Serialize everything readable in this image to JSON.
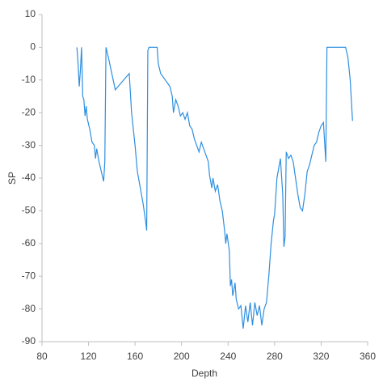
{
  "chart_data": {
    "type": "line",
    "x_label": "Depth",
    "y_label": "SP",
    "x": [
      110,
      111,
      112,
      113,
      114,
      115,
      116,
      117,
      118,
      119,
      121,
      123,
      125,
      126,
      127,
      129,
      131,
      133,
      134,
      135,
      137,
      140,
      143,
      155,
      157,
      160,
      162,
      165,
      167,
      169,
      170,
      171,
      172,
      175,
      179,
      180,
      182,
      184,
      186,
      188,
      190,
      192,
      193,
      195,
      197,
      199,
      201,
      203,
      205,
      207,
      209,
      211,
      213,
      215,
      217,
      219,
      221,
      223,
      224,
      226,
      227,
      229,
      231,
      233,
      235,
      237,
      238,
      239,
      241,
      242,
      243,
      244,
      246,
      247,
      249,
      251,
      253,
      255,
      257,
      259,
      261,
      263,
      265,
      267,
      269,
      271,
      273,
      275,
      277,
      279,
      280,
      282,
      284,
      285,
      287,
      288,
      289,
      290,
      292,
      294,
      296,
      298,
      300,
      302,
      304,
      306,
      308,
      310,
      312,
      314,
      316,
      318,
      320,
      322,
      324,
      325,
      330,
      341,
      343,
      345,
      347
    ],
    "series": [
      {
        "name": "SP",
        "color": "#2e8fe0",
        "values": [
          0,
          -5,
          -12,
          -7,
          0,
          -15,
          -16,
          -21,
          -18,
          -22,
          -25,
          -29,
          -30,
          -34,
          -31,
          -35,
          -38,
          -41,
          -35,
          0,
          -3,
          -8,
          -13,
          -8,
          -20,
          -30,
          -38,
          -44,
          -48,
          -53,
          -56,
          -1,
          0,
          0,
          0,
          -5,
          -8,
          -9,
          -10,
          -11,
          -12,
          -15,
          -20,
          -16,
          -18,
          -21,
          -20,
          -22,
          -20,
          -24,
          -25,
          -28,
          -30,
          -32,
          -29,
          -31,
          -33,
          -35,
          -39,
          -43,
          -40,
          -44,
          -42,
          -47,
          -50,
          -56,
          -60,
          -57,
          -62,
          -73,
          -71,
          -76,
          -72,
          -77,
          -80,
          -79,
          -86,
          -79,
          -84,
          -78,
          -85,
          -78,
          -82,
          -79,
          -85,
          -80,
          -78,
          -70,
          -60,
          -53,
          -51,
          -40,
          -36,
          -34,
          -45,
          -61,
          -58,
          -32,
          -34,
          -33,
          -35,
          -40,
          -45,
          -49,
          -50,
          -45,
          -38,
          -36,
          -33,
          -30,
          -29,
          -26,
          -24,
          -23,
          -35,
          0,
          0,
          0,
          -3,
          -10,
          -22.5
        ]
      }
    ],
    "xlim": [
      80,
      360
    ],
    "xticks": [
      80,
      120,
      160,
      200,
      240,
      280,
      320,
      360
    ],
    "ylim": [
      -90,
      10
    ],
    "yticks": [
      10,
      0,
      -10,
      -20,
      -30,
      -40,
      -50,
      -60,
      -70,
      -80,
      -90
    ]
  }
}
